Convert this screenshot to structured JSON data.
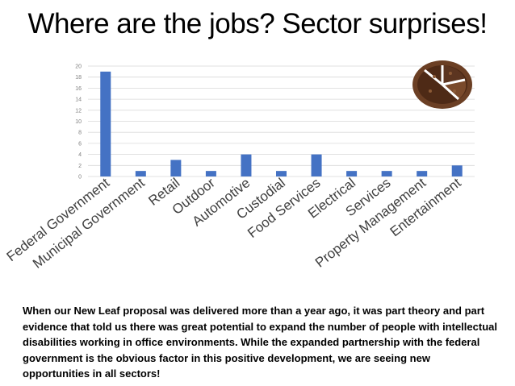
{
  "slide": {
    "title": "Where are the jobs? Sector surprises!",
    "body": "When our New Leaf proposal was delivered more than a year ago, it was part theory and part evidence that told us there was great potential to expand the number of people with intellectual disabilities working in office environments. While the expanded partnership with the federal government is the obvious factor in this positive development, we are seeing new opportunities in all sectors!"
  },
  "decoration": {
    "image": "pie-chart-made-of-coffee-beans-icon"
  },
  "colors": {
    "bar": "#4472c4",
    "grid": "#d9d9d9",
    "axis_text": "#7f7f7f",
    "category_text": "#404040"
  },
  "chart_data": {
    "type": "bar",
    "title": "",
    "xlabel": "",
    "ylabel": "",
    "categories": [
      "Federal Government",
      "Municipal Government",
      "Retail",
      "Outdoor",
      "Automotive",
      "Custodial",
      "Food Services",
      "Electrical",
      "Services",
      "Property Management",
      "Entertainment"
    ],
    "values": [
      19,
      1,
      3,
      1,
      4,
      1,
      4,
      1,
      1,
      1,
      2
    ],
    "ylim": [
      0,
      20
    ],
    "yticks": [
      0,
      2,
      4,
      6,
      8,
      10,
      12,
      14,
      16,
      18,
      20
    ],
    "grid": true,
    "legend": "none"
  }
}
